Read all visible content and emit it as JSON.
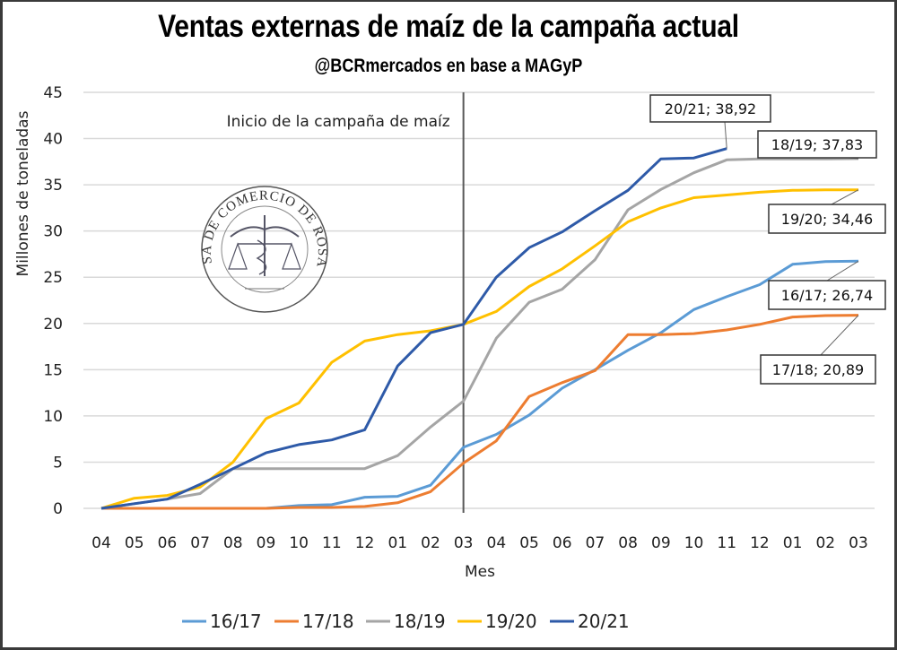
{
  "chart_data": {
    "type": "line",
    "title": "Ventas externas de maíz de la campaña actual",
    "subtitle": "@BCRmercados en base a MAGyP",
    "xlabel": "Mes",
    "ylabel": "Millones de toneladas",
    "ylim": [
      0,
      45
    ],
    "yticks": [
      0,
      5,
      10,
      15,
      20,
      25,
      30,
      35,
      40,
      45
    ],
    "grid": true,
    "legend_position": "bottom",
    "categories": [
      "04",
      "05",
      "06",
      "07",
      "08",
      "09",
      "10",
      "11",
      "12",
      "01",
      "02",
      "03",
      "04",
      "05",
      "06",
      "07",
      "08",
      "09",
      "10",
      "11",
      "12",
      "01",
      "02",
      "03"
    ],
    "vertical_marker": {
      "category_index": 11,
      "label": "Inicio de la campaña de maíz"
    },
    "series": [
      {
        "name": "16/17",
        "color": "#5b9bd5",
        "values": [
          0,
          0,
          0,
          0,
          0,
          0,
          0.3,
          0.4,
          1.2,
          1.3,
          2.5,
          6.6,
          8.0,
          10.1,
          13.0,
          15.0,
          17.1,
          19.0,
          21.5,
          22.9,
          24.2,
          26.4,
          26.7,
          26.74
        ],
        "end_label": "16/17; 26,74"
      },
      {
        "name": "17/18",
        "color": "#ed7d31",
        "values": [
          0,
          0,
          0,
          0,
          0,
          0,
          0.1,
          0.1,
          0.2,
          0.6,
          1.8,
          4.9,
          7.3,
          12.1,
          13.6,
          14.9,
          18.8,
          18.8,
          18.9,
          19.3,
          19.9,
          20.7,
          20.85,
          20.89
        ],
        "end_label": "17/18; 20,89"
      },
      {
        "name": "18/19",
        "color": "#a5a5a5",
        "values": [
          0,
          0.5,
          1.0,
          1.6,
          4.3,
          4.3,
          4.3,
          4.3,
          4.3,
          5.7,
          8.8,
          11.6,
          18.4,
          22.3,
          23.7,
          26.9,
          32.3,
          34.5,
          36.3,
          37.7,
          37.8,
          37.8,
          37.8,
          37.83
        ],
        "end_label": "18/19; 37,83"
      },
      {
        "name": "19/20",
        "color": "#ffc000",
        "values": [
          0,
          1.1,
          1.4,
          2.3,
          5.0,
          9.7,
          11.4,
          15.8,
          18.1,
          18.8,
          19.2,
          19.9,
          21.3,
          24.0,
          25.9,
          28.4,
          31.0,
          32.5,
          33.6,
          33.9,
          34.2,
          34.4,
          34.45,
          34.46
        ],
        "end_label": "19/20; 34,46"
      },
      {
        "name": "20/21",
        "color": "#2e5aa8",
        "values": [
          0,
          0.5,
          1.0,
          2.6,
          4.3,
          6.0,
          6.9,
          7.4,
          8.5,
          15.4,
          19.0,
          19.9,
          25.0,
          28.2,
          29.9,
          32.2,
          34.4,
          37.8,
          37.9,
          38.92
        ],
        "end_label": "20/21; 38,92"
      }
    ],
    "watermark": "BOLSA DE COMERCIO DE ROSARIO"
  }
}
